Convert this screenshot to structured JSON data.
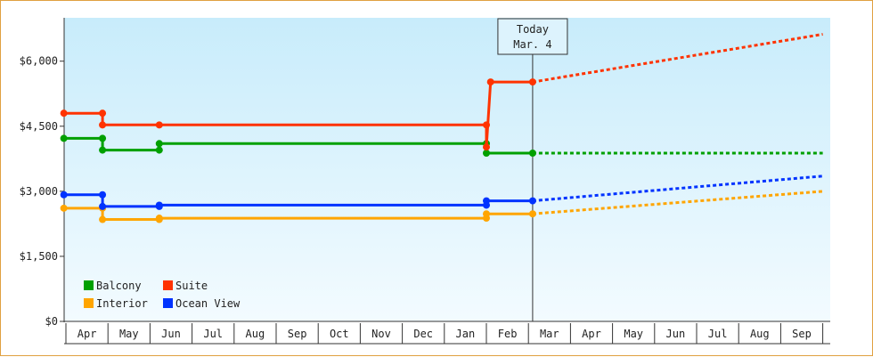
{
  "chart_data": {
    "type": "line",
    "title": "",
    "xlabel": "",
    "ylabel": "",
    "ylim": [
      0,
      7000
    ],
    "y_ticks": [
      {
        "value": 0,
        "label": "$0"
      },
      {
        "value": 1500,
        "label": "$1,500"
      },
      {
        "value": 3000,
        "label": "$3,000"
      },
      {
        "value": 4500,
        "label": "$4,500"
      },
      {
        "value": 6000,
        "label": "$6,000"
      }
    ],
    "x_unit": "months since start of April (year 1)",
    "xlim": [
      0,
      18
    ],
    "x_ticks": [
      "Apr",
      "May",
      "Jun",
      "Jul",
      "Aug",
      "Sep",
      "Oct",
      "Nov",
      "Dec",
      "Jan",
      "Feb",
      "Mar",
      "Apr",
      "May",
      "Jun",
      "Jul",
      "Aug",
      "Sep"
    ],
    "today": {
      "x": 11.1,
      "label_line1": "Today",
      "label_line2": "Mar. 4"
    },
    "legend_placement": "bottom-left",
    "series": [
      {
        "name": "Balcony",
        "color": "#00a000",
        "points": [
          [
            -0.05,
            4220
          ],
          [
            0.87,
            4220
          ],
          [
            0.87,
            3950
          ],
          [
            2.22,
            3950
          ],
          [
            2.22,
            4100
          ],
          [
            10.0,
            4100
          ],
          [
            10.0,
            3880
          ],
          [
            11.1,
            3880
          ]
        ],
        "forecast": [
          [
            11.1,
            3880
          ],
          [
            18.0,
            3880
          ]
        ]
      },
      {
        "name": "Suite",
        "color": "#ff3300",
        "points": [
          [
            -0.05,
            4800
          ],
          [
            0.87,
            4800
          ],
          [
            0.87,
            4530
          ],
          [
            2.22,
            4530
          ],
          [
            10.0,
            4530
          ],
          [
            10.0,
            4020
          ],
          [
            10.1,
            5520
          ],
          [
            11.1,
            5520
          ]
        ],
        "forecast": [
          [
            11.1,
            5520
          ],
          [
            18.0,
            6620
          ]
        ]
      },
      {
        "name": "Interior",
        "color": "#ffa500",
        "points": [
          [
            -0.05,
            2610
          ],
          [
            0.87,
            2610
          ],
          [
            0.87,
            2350
          ],
          [
            2.22,
            2350
          ],
          [
            2.22,
            2380
          ],
          [
            10.0,
            2380
          ],
          [
            10.0,
            2480
          ],
          [
            11.1,
            2480
          ]
        ],
        "forecast": [
          [
            11.1,
            2480
          ],
          [
            18.0,
            3000
          ]
        ]
      },
      {
        "name": "Ocean View",
        "color": "#0033ff",
        "points": [
          [
            -0.05,
            2920
          ],
          [
            0.87,
            2920
          ],
          [
            0.87,
            2650
          ],
          [
            2.22,
            2650
          ],
          [
            2.22,
            2680
          ],
          [
            10.0,
            2680
          ],
          [
            10.0,
            2780
          ],
          [
            11.1,
            2780
          ]
        ],
        "forecast": [
          [
            11.1,
            2780
          ],
          [
            18.0,
            3350
          ]
        ]
      }
    ],
    "markers": {
      "Balcony": [
        [
          -0.05,
          4220
        ],
        [
          0.87,
          4220
        ],
        [
          0.87,
          3950
        ],
        [
          2.22,
          3950
        ],
        [
          2.22,
          4100
        ],
        [
          10.0,
          4100
        ],
        [
          10.0,
          3880
        ],
        [
          11.1,
          3880
        ]
      ],
      "Suite": [
        [
          -0.05,
          4800
        ],
        [
          0.87,
          4800
        ],
        [
          0.87,
          4530
        ],
        [
          2.22,
          4530
        ],
        [
          10.0,
          4530
        ],
        [
          10.0,
          4020
        ],
        [
          10.1,
          5520
        ],
        [
          11.1,
          5520
        ]
      ],
      "Interior": [
        [
          -0.05,
          2610
        ],
        [
          0.87,
          2610
        ],
        [
          0.87,
          2350
        ],
        [
          2.22,
          2350
        ],
        [
          2.22,
          2380
        ],
        [
          10.0,
          2380
        ],
        [
          10.0,
          2480
        ],
        [
          11.1,
          2480
        ]
      ],
      "Ocean View": [
        [
          -0.05,
          2920
        ],
        [
          0.87,
          2920
        ],
        [
          0.87,
          2650
        ],
        [
          2.22,
          2650
        ],
        [
          2.22,
          2680
        ],
        [
          10.0,
          2680
        ],
        [
          10.0,
          2780
        ],
        [
          11.1,
          2780
        ]
      ]
    }
  }
}
